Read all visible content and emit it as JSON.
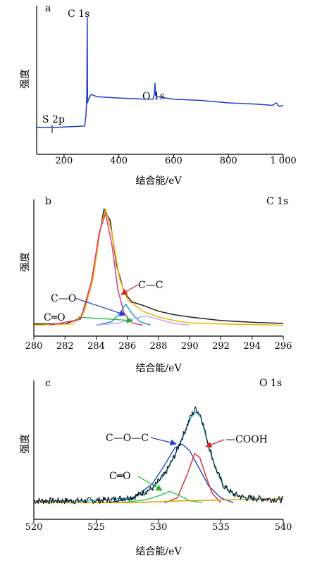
{
  "chart_data": [
    {
      "panel": "a",
      "type": "line",
      "xlabel": "结合能/eV",
      "ylabel": "强度",
      "xlim": [
        100,
        1000
      ],
      "xticks": [
        200,
        400,
        600,
        800,
        1000
      ],
      "xtick_labels": [
        "200",
        "400",
        "600",
        "800",
        "1 000"
      ],
      "annotations": [
        {
          "text": "C 1s",
          "x": 284
        },
        {
          "text": "O 1s",
          "x": 532
        },
        {
          "text": "S 2p",
          "x": 164
        }
      ],
      "series": [
        {
          "color": "#1f3fc7",
          "points": [
            [
              100,
              0.1
            ],
            [
              180,
              0.1
            ],
            [
              275,
              0.11
            ],
            [
              280,
              0.2
            ],
            [
              283,
              0.35
            ],
            [
              284.5,
              1.0
            ],
            [
              286,
              0.3
            ],
            [
              289,
              0.33
            ],
            [
              300,
              0.37
            ],
            [
              320,
              0.35
            ],
            [
              400,
              0.34
            ],
            [
              500,
              0.33
            ],
            [
              525,
              0.33
            ],
            [
              530,
              0.38
            ],
            [
              532,
              0.46
            ],
            [
              534,
              0.36
            ],
            [
              540,
              0.35
            ],
            [
              600,
              0.33
            ],
            [
              700,
              0.32
            ],
            [
              800,
              0.3
            ],
            [
              900,
              0.29
            ],
            [
              960,
              0.28
            ],
            [
              975,
              0.3
            ],
            [
              985,
              0.27
            ],
            [
              1000,
              0.28
            ]
          ]
        }
      ]
    },
    {
      "panel": "b",
      "type": "line",
      "title": "C 1s",
      "xlabel": "结合能/eV",
      "ylabel": "强度",
      "xlim": [
        280,
        296
      ],
      "xticks": [
        280,
        282,
        284,
        286,
        288,
        290,
        292,
        294,
        296
      ],
      "annotations": [
        {
          "text": "C—C",
          "color": "#e02020"
        },
        {
          "text": "C—O",
          "color": "#2a3fd0"
        },
        {
          "text": "C═O",
          "color": "#22b422"
        }
      ],
      "series": [
        {
          "name_hint": "raw",
          "color": "#222222",
          "points": [
            [
              280,
              0.01
            ],
            [
              282,
              0.01
            ],
            [
              283,
              0.06
            ],
            [
              283.6,
              0.3
            ],
            [
              284,
              0.62
            ],
            [
              284.5,
              1.0
            ],
            [
              284.9,
              0.9
            ],
            [
              285.3,
              0.52
            ],
            [
              285.8,
              0.28
            ],
            [
              286.3,
              0.2
            ],
            [
              287,
              0.17
            ],
            [
              288,
              0.12
            ],
            [
              289,
              0.09
            ],
            [
              290,
              0.07
            ],
            [
              292,
              0.04
            ],
            [
              294,
              0.025
            ],
            [
              296,
              0.015
            ]
          ]
        },
        {
          "name_hint": "envelope",
          "color": "#f0b400",
          "points": [
            [
              280,
              0.0
            ],
            [
              282.5,
              0.01
            ],
            [
              283.2,
              0.1
            ],
            [
              283.8,
              0.4
            ],
            [
              284.3,
              0.85
            ],
            [
              284.6,
              1.0
            ],
            [
              285.0,
              0.8
            ],
            [
              285.5,
              0.4
            ],
            [
              286.0,
              0.22
            ],
            [
              287,
              0.12
            ],
            [
              288,
              0.07
            ],
            [
              289,
              0.04
            ],
            [
              290,
              0.02
            ],
            [
              292,
              0.01
            ],
            [
              296,
              0.0
            ]
          ]
        },
        {
          "name_hint": "C—C",
          "color": "#e23a7a",
          "points": [
            [
              281,
              0.0
            ],
            [
              283,
              0.05
            ],
            [
              283.7,
              0.38
            ],
            [
              284.2,
              0.8
            ],
            [
              284.6,
              0.96
            ],
            [
              285.0,
              0.7
            ],
            [
              285.4,
              0.3
            ],
            [
              285.8,
              0.1
            ],
            [
              286.3,
              0.02
            ],
            [
              287,
              0.0
            ]
          ]
        },
        {
          "name_hint": "C—O",
          "color": "#1aa0d8",
          "points": [
            [
              284,
              0.0
            ],
            [
              285,
              0.03
            ],
            [
              285.5,
              0.1
            ],
            [
              285.9,
              0.18
            ],
            [
              286.3,
              0.1
            ],
            [
              286.8,
              0.03
            ],
            [
              287.5,
              0.0
            ]
          ]
        },
        {
          "name_hint": "C═O",
          "color": "#bda8ff",
          "points": [
            [
              284,
              0.0
            ],
            [
              285.5,
              0.02
            ],
            [
              286.5,
              0.06
            ],
            [
              287.2,
              0.08
            ],
            [
              288,
              0.05
            ],
            [
              289,
              0.015
            ],
            [
              290,
              0.0
            ]
          ]
        }
      ]
    },
    {
      "panel": "c",
      "type": "line",
      "title": "O 1s",
      "xlabel": "结合能/eV",
      "ylabel": "强度",
      "xlim": [
        520,
        540
      ],
      "xticks": [
        520,
        525,
        530,
        535,
        540
      ],
      "annotations": [
        {
          "text": "C—O—C",
          "color": "#2a3fd0"
        },
        {
          "text": "—COOH",
          "color": "#e02020"
        },
        {
          "text": "C═O",
          "color": "#22b422"
        }
      ],
      "series": [
        {
          "name_hint": "envelope",
          "color": "#19c2d6",
          "points": [
            [
              520,
              0.02
            ],
            [
              524,
              0.02
            ],
            [
              526,
              0.03
            ],
            [
              528,
              0.06
            ],
            [
              529.5,
              0.15
            ],
            [
              530.5,
              0.3
            ],
            [
              531.3,
              0.5
            ],
            [
              532,
              0.72
            ],
            [
              532.6,
              0.9
            ],
            [
              533,
              0.96
            ],
            [
              533.4,
              0.9
            ],
            [
              534,
              0.6
            ],
            [
              534.6,
              0.35
            ],
            [
              535.2,
              0.18
            ],
            [
              536,
              0.09
            ],
            [
              537,
              0.05
            ],
            [
              540,
              0.03
            ]
          ]
        },
        {
          "name_hint": "C—O—C",
          "color": "#2a54d6",
          "points": [
            [
              526,
              0.0
            ],
            [
              528,
              0.05
            ],
            [
              529.5,
              0.2
            ],
            [
              530.5,
              0.4
            ],
            [
              531.3,
              0.58
            ],
            [
              531.9,
              0.62
            ],
            [
              532.5,
              0.55
            ],
            [
              533.2,
              0.38
            ],
            [
              534,
              0.18
            ],
            [
              535,
              0.05
            ],
            [
              536,
              0.0
            ]
          ]
        },
        {
          "name_hint": "—COOH",
          "color": "#e23030",
          "points": [
            [
              530.5,
              0.0
            ],
            [
              531.5,
              0.05
            ],
            [
              532.3,
              0.3
            ],
            [
              532.9,
              0.52
            ],
            [
              533.3,
              0.48
            ],
            [
              533.8,
              0.28
            ],
            [
              534.3,
              0.1
            ],
            [
              535,
              0.0
            ]
          ]
        },
        {
          "name_hint": "C═O",
          "color": "#2ccf5a",
          "points": [
            [
              527,
              0.0
            ],
            [
              529,
              0.03
            ],
            [
              530.2,
              0.08
            ],
            [
              530.9,
              0.12
            ],
            [
              531.6,
              0.08
            ],
            [
              532.5,
              0.02
            ],
            [
              533.5,
              0.0
            ]
          ]
        },
        {
          "name_hint": "baseline",
          "color": "#e0a000",
          "points": [
            [
              520,
              0.0
            ],
            [
              528,
              0.0
            ],
            [
              532,
              0.02
            ],
            [
              536,
              0.03
            ],
            [
              540,
              0.04
            ]
          ]
        },
        {
          "name_hint": "raw",
          "color": "#111111",
          "noisy": true,
          "points": [
            [
              520,
              0.02
            ],
            [
              524,
              0.02
            ],
            [
              526,
              0.03
            ],
            [
              528,
              0.06
            ],
            [
              529.5,
              0.15
            ],
            [
              530.5,
              0.3
            ],
            [
              531.3,
              0.5
            ],
            [
              532,
              0.72
            ],
            [
              532.6,
              0.92
            ],
            [
              533,
              1.0
            ],
            [
              533.4,
              0.92
            ],
            [
              534,
              0.62
            ],
            [
              534.6,
              0.36
            ],
            [
              535.2,
              0.18
            ],
            [
              536,
              0.09
            ],
            [
              537,
              0.05
            ],
            [
              540,
              0.03
            ]
          ]
        }
      ]
    }
  ]
}
